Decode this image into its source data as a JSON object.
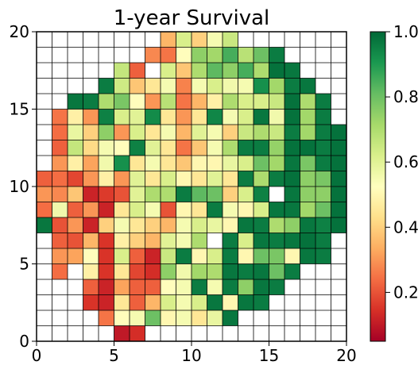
{
  "chart_data": {
    "type": "heatmap",
    "title": "1-year Survival",
    "xlabel": "",
    "ylabel": "",
    "xlim": [
      0,
      20
    ],
    "ylim": [
      0,
      20
    ],
    "grid_size": 20,
    "x_ticks": [
      "0",
      "5",
      "10",
      "15",
      "20"
    ],
    "y_ticks": [
      "0",
      "5",
      "10",
      "15",
      "20"
    ],
    "colorbar": {
      "colormap": "RdYlGn",
      "range": [
        0.05,
        1.0
      ],
      "ticks": [
        "0.2",
        "0.4",
        "0.6",
        "0.8",
        "1.0"
      ]
    },
    "rows_top_to_bottom": [
      [
        null,
        null,
        null,
        null,
        null,
        null,
        null,
        null,
        0.35,
        0.62,
        0.4,
        0.55,
        0.65,
        null,
        null,
        null,
        null,
        null,
        null,
        null
      ],
      [
        null,
        null,
        null,
        null,
        null,
        null,
        null,
        0.28,
        0.25,
        0.52,
        0.75,
        0.72,
        0.85,
        0.68,
        0.8,
        0.96,
        null,
        null,
        null,
        null
      ],
      [
        null,
        null,
        null,
        null,
        null,
        0.66,
        0.22,
        null,
        0.62,
        0.38,
        0.7,
        0.82,
        0.75,
        0.85,
        0.7,
        0.98,
        0.97,
        null,
        null,
        null
      ],
      [
        null,
        null,
        null,
        null,
        0.96,
        0.64,
        0.38,
        0.45,
        0.55,
        0.27,
        0.55,
        0.62,
        0.56,
        0.55,
        0.92,
        0.72,
        0.96,
        0.97,
        null,
        null
      ],
      [
        null,
        null,
        0.97,
        0.96,
        0.7,
        0.78,
        0.52,
        0.3,
        0.68,
        0.25,
        0.35,
        0.48,
        0.7,
        0.62,
        0.62,
        0.65,
        0.98,
        0.7,
        0.96,
        null
      ],
      [
        null,
        0.25,
        0.48,
        0.3,
        0.95,
        0.62,
        0.6,
        0.93,
        0.45,
        0.3,
        0.45,
        0.94,
        0.55,
        0.62,
        0.97,
        0.56,
        0.98,
        0.72,
        0.96,
        null
      ],
      [
        null,
        0.24,
        0.58,
        0.4,
        0.75,
        0.3,
        0.62,
        0.45,
        0.55,
        0.35,
        0.6,
        0.55,
        0.4,
        0.65,
        0.7,
        0.65,
        0.96,
        0.72,
        0.96,
        0.98
      ],
      [
        null,
        0.22,
        0.66,
        0.42,
        0.55,
        0.52,
        0.95,
        0.6,
        0.45,
        0.25,
        0.38,
        0.55,
        0.7,
        0.96,
        0.96,
        0.74,
        0.98,
        0.98,
        0.96,
        0.98
      ],
      [
        null,
        0.3,
        0.48,
        0.32,
        0.56,
        0.92,
        0.45,
        0.55,
        0.45,
        0.38,
        0.5,
        0.5,
        0.58,
        0.62,
        0.8,
        0.72,
        0.97,
        0.78,
        0.96,
        0.98
      ],
      [
        0.22,
        0.24,
        0.18,
        0.3,
        0.48,
        0.3,
        0.6,
        0.45,
        0.62,
        0.5,
        0.45,
        0.6,
        0.45,
        0.96,
        0.7,
        0.96,
        0.98,
        0.75,
        0.78,
        0.98
      ],
      [
        0.3,
        0.28,
        0.38,
        0.12,
        0.16,
        0.2,
        0.6,
        0.7,
        0.7,
        0.96,
        0.82,
        0.8,
        0.4,
        0.62,
        0.95,
        null,
        0.97,
        0.75,
        0.75,
        0.98
      ],
      [
        0.24,
        0.56,
        0.22,
        0.3,
        0.12,
        0.45,
        0.62,
        0.55,
        0.2,
        0.5,
        0.45,
        0.96,
        0.55,
        0.5,
        0.62,
        0.97,
        0.97,
        0.72,
        0.8,
        0.98
      ],
      [
        0.97,
        0.2,
        0.3,
        0.12,
        0.4,
        0.55,
        0.45,
        0.4,
        0.35,
        0.55,
        0.62,
        0.58,
        0.5,
        0.97,
        0.96,
        0.7,
        0.75,
        0.97,
        0.95,
        0.98
      ],
      [
        null,
        0.22,
        0.2,
        0.35,
        0.15,
        0.48,
        0.4,
        0.35,
        0.6,
        0.55,
        0.7,
        null,
        0.96,
        0.62,
        0.97,
        0.96,
        0.97,
        0.98,
        0.96,
        null
      ],
      [
        null,
        0.3,
        0.32,
        0.52,
        0.15,
        0.62,
        0.22,
        0.12,
        0.65,
        0.96,
        0.5,
        0.62,
        0.96,
        0.5,
        0.8,
        0.78,
        0.5,
        0.97,
        0.96,
        null
      ],
      [
        null,
        0.24,
        null,
        0.48,
        0.15,
        0.45,
        0.18,
        0.14,
        0.75,
        0.56,
        0.72,
        0.7,
        0.97,
        0.96,
        0.97,
        0.8,
        0.96,
        null,
        null,
        null
      ],
      [
        null,
        null,
        null,
        0.22,
        0.12,
        0.32,
        0.22,
        0.22,
        0.52,
        0.55,
        0.96,
        0.55,
        0.96,
        0.75,
        0.97,
        0.96,
        null,
        null,
        null,
        null
      ],
      [
        null,
        null,
        null,
        0.15,
        0.12,
        0.45,
        0.22,
        0.35,
        0.62,
        0.55,
        0.62,
        0.97,
        0.5,
        0.97,
        0.96,
        null,
        null,
        null,
        null,
        null
      ],
      [
        null,
        null,
        null,
        null,
        0.25,
        0.52,
        0.55,
        0.8,
        0.5,
        0.55,
        0.45,
        0.58,
        0.97,
        null,
        null,
        null,
        null,
        null,
        null,
        null
      ],
      [
        null,
        null,
        null,
        null,
        null,
        0.1,
        0.14,
        null,
        null,
        null,
        null,
        null,
        null,
        null,
        null,
        null,
        null,
        null,
        null,
        null
      ]
    ]
  }
}
